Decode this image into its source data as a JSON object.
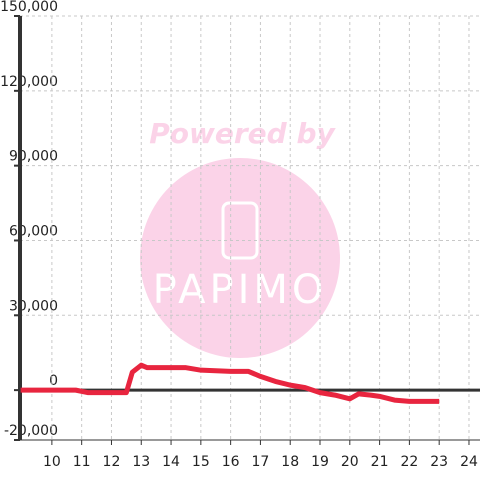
{
  "chart_data": {
    "type": "line",
    "watermark": [
      "Powered by",
      "PAPIMO"
    ],
    "xlim": [
      8.93,
      24.37
    ],
    "ylim": [
      -20000,
      150000
    ],
    "xticks": [
      10,
      11,
      12,
      13,
      14,
      15,
      16,
      17,
      18,
      19,
      20,
      21,
      22,
      23,
      24
    ],
    "yticks": [
      {
        "value": -20000,
        "label": "-20,000"
      },
      0,
      {
        "value": 30000,
        "label": "30,000"
      },
      {
        "value": 60000,
        "label": "60,000"
      },
      {
        "value": 90000,
        "label": "90,000"
      },
      {
        "value": 120000,
        "label": "120,000"
      },
      {
        "value": 150000,
        "label": "150,000"
      }
    ],
    "grid": true,
    "series": [
      {
        "color": "#e8253f",
        "x": [
          8.95,
          10.8,
          11.2,
          12.5,
          12.7,
          13.0,
          13.2,
          14.5,
          15.0,
          16.0,
          16.6,
          17.0,
          17.5,
          18.0,
          18.5,
          19.0,
          19.5,
          20.0,
          20.3,
          20.7,
          21.0,
          21.5,
          22.0,
          23.0
        ],
        "values": [
          0,
          0,
          -1000,
          -1000,
          7200,
          10000,
          9000,
          9000,
          8000,
          7500,
          7500,
          5500,
          3500,
          2000,
          1000,
          -1000,
          -2000,
          -3500,
          -1500,
          -2000,
          -2500,
          -4000,
          -4500,
          -4500
        ]
      }
    ]
  }
}
